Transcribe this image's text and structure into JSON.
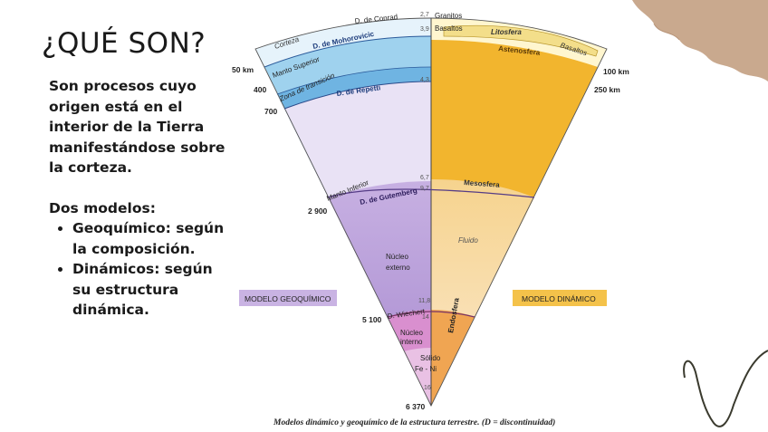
{
  "slide": {
    "title": "¿QUÉ SON?",
    "intro": "Son procesos cuyo origen está en el interior de la Tierra manifestándose sobre la corteza.",
    "models_heading": "Dos modelos:",
    "bullets": [
      "Geoquímico: según la composición.",
      "Dinámicos: según su estructura dinámica."
    ]
  },
  "diagram": {
    "caption": "Modelos dinámico y geoquímico de la estructura terrestre. (D = discontinuidad)",
    "geo_model_label": "MODELO GEOQUÍMICO",
    "dyn_model_label": "MODELO DINÁMICO",
    "left_depths": [
      "50 km",
      "400",
      "700",
      "2 900",
      "5 100",
      "6 370"
    ],
    "right_depths": [
      "100 km",
      "250 km"
    ],
    "densities": [
      "2,7",
      "3,9",
      "4,3",
      "6,7",
      "9,7",
      "11,8",
      "14",
      "16"
    ],
    "geo_layers": {
      "corteza": "Corteza",
      "conrad": "D. de Conrad",
      "mohorovicic": "D. de Mohorovicic",
      "manto_superior": "Manto Superior",
      "zona_transicion": "Zona de transición",
      "repetti": "D. de Repetti",
      "manto_inferior": "Manto Inferior",
      "gutemberg": "D. de Gutemberg",
      "nucleo_externo": [
        "Núcleo",
        "externo"
      ],
      "wiechert": "D. Wiechert",
      "nucleo_interno": [
        "Núcleo",
        "interno"
      ],
      "solido": "Sólido",
      "fe_ni": "Fe - Ni"
    },
    "dyn_layers": {
      "granitos": "Granitos",
      "basaltos_top": "Basaltos",
      "litosfera": "Litosfera",
      "basaltos": "Basaltos",
      "astenosfera": "Astenosfera",
      "mesosfera": "Mesosfera",
      "fluido": "Fluido",
      "endosfera": "Endosfera"
    },
    "colors": {
      "geo_label_bg": "#c9b3e3",
      "dyn_label_bg": "#f4c24a",
      "astenosfera": "#f2b52e",
      "mesosfera": "#fbe6c4",
      "endosfera": "#f0a552",
      "manto_inferior": "#e9e2f5",
      "nucleo_externo": "#bca0dc",
      "nucleo_interno": "#d98fcf"
    }
  }
}
